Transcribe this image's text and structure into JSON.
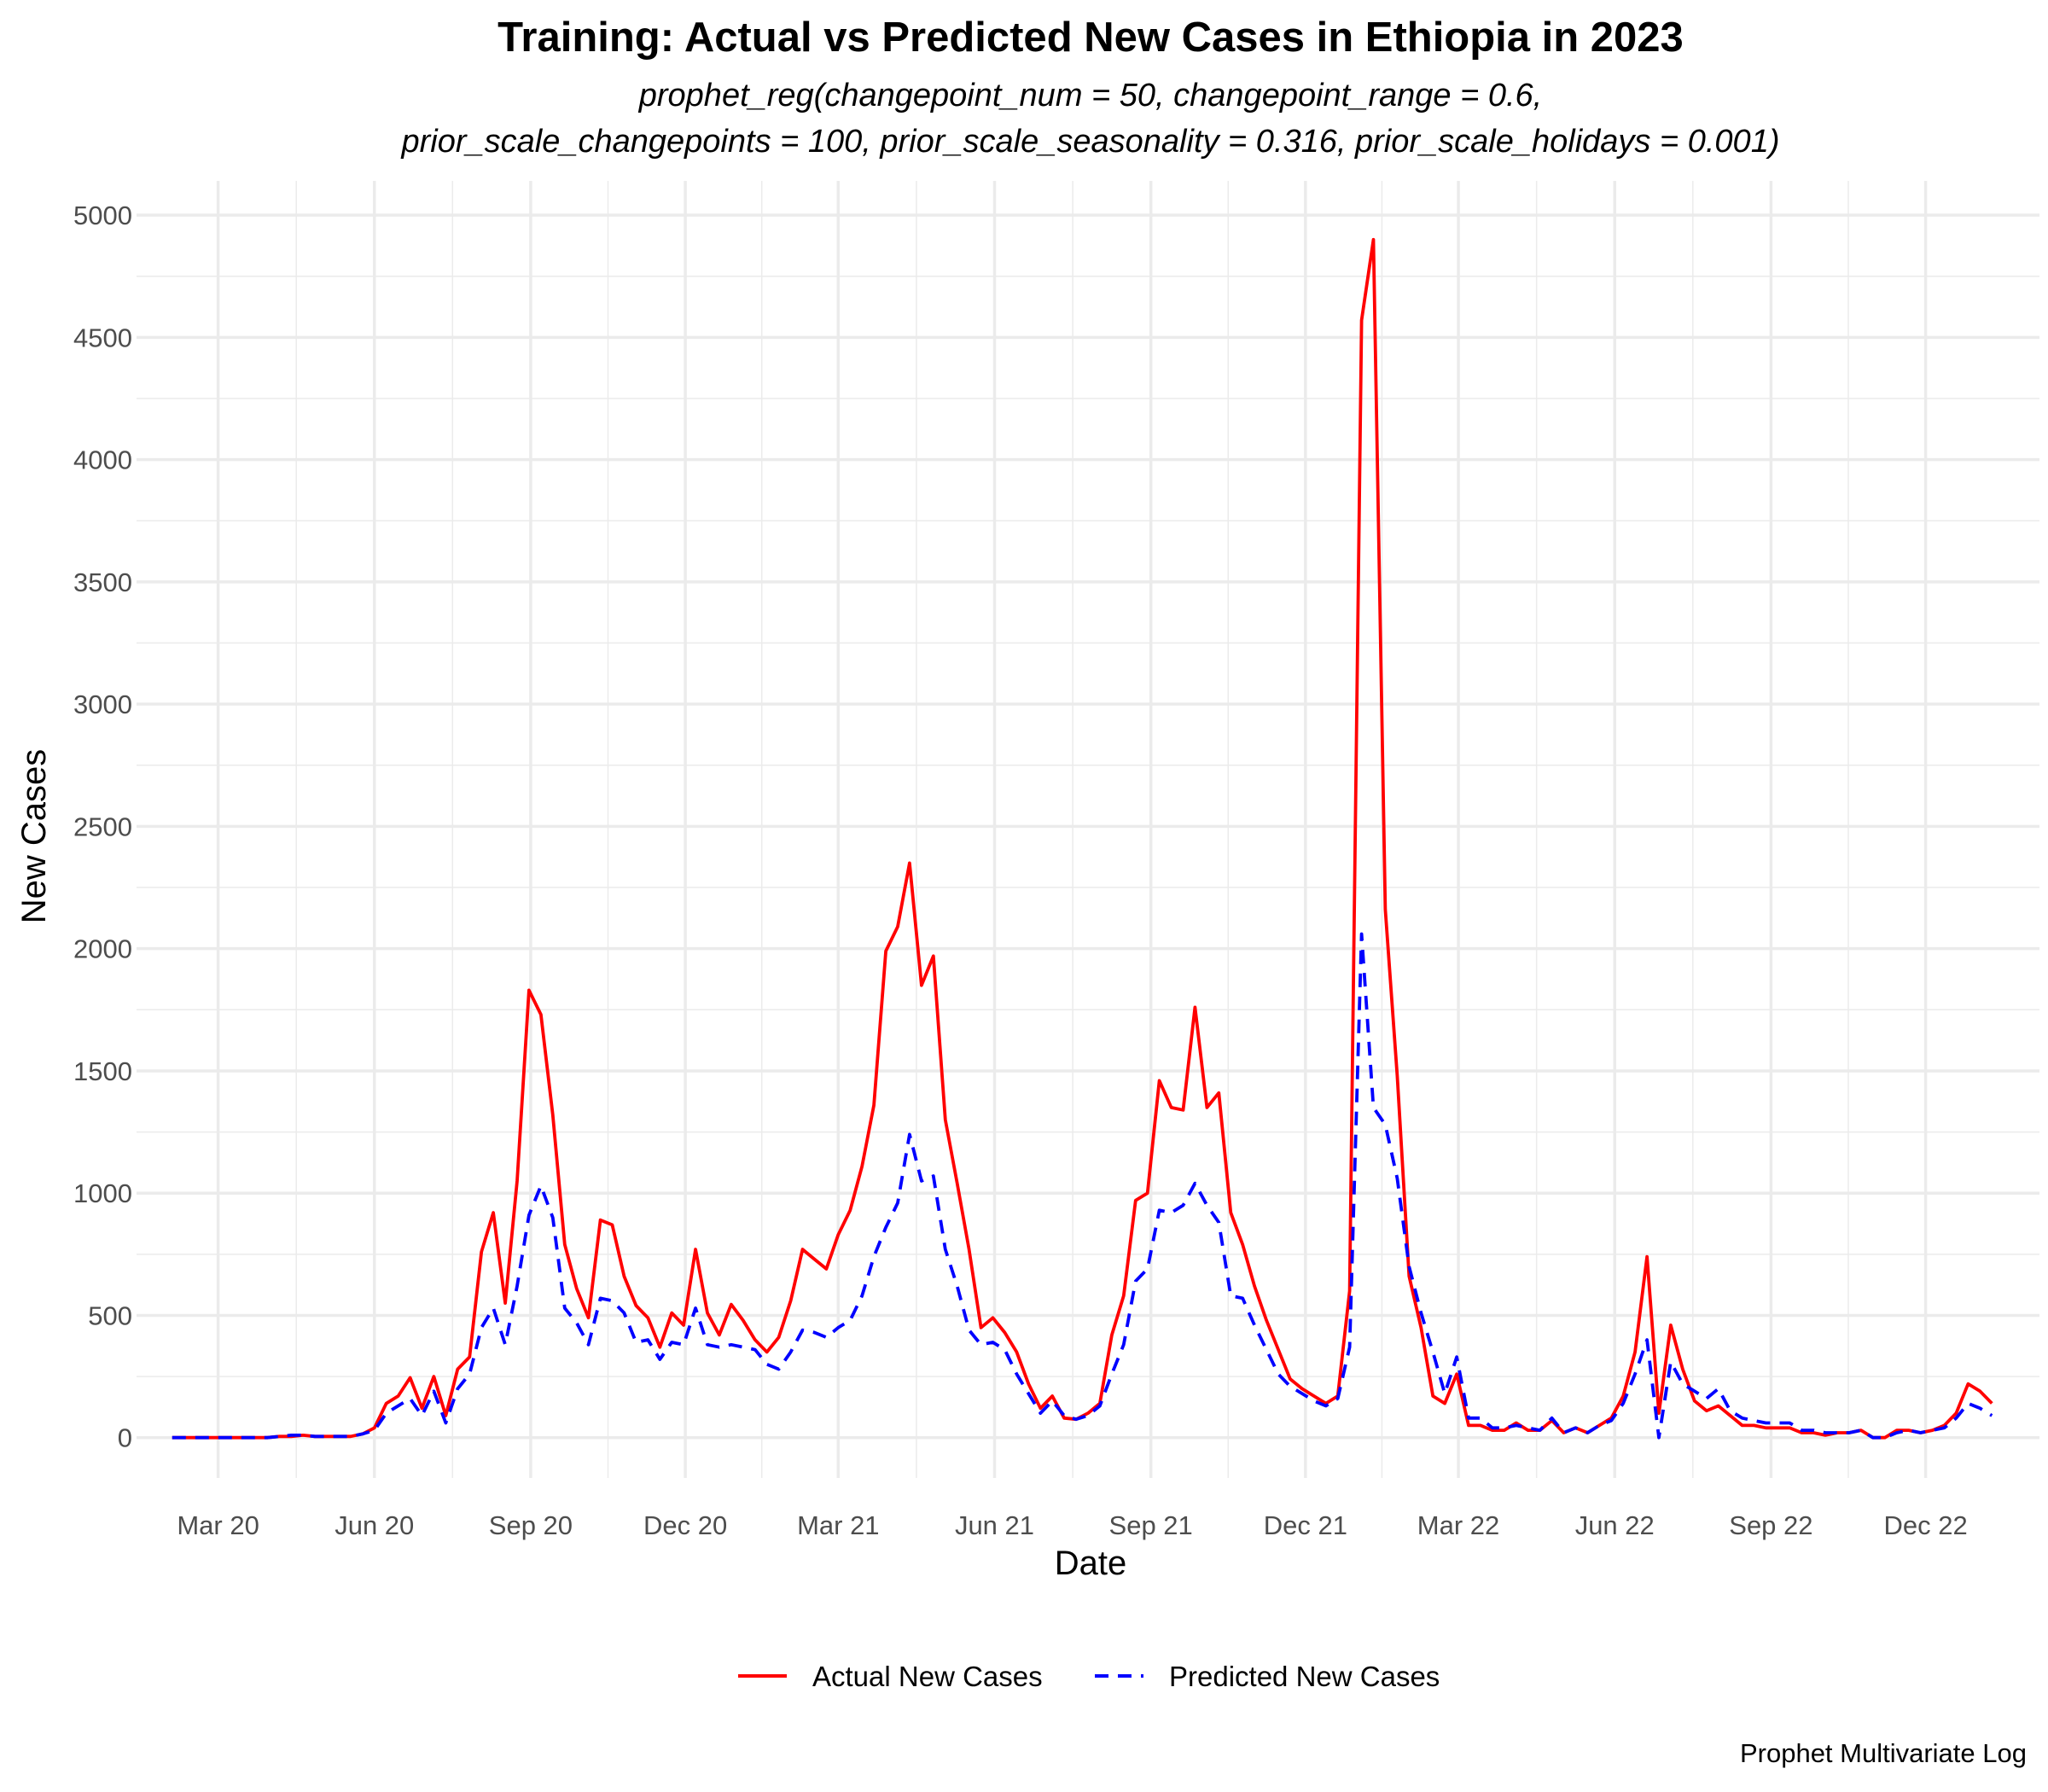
{
  "chart_data": {
    "type": "line",
    "title": "Training: Actual vs Predicted New Cases in Ethiopia in 2023",
    "subtitle_lines": [
      "prophet_reg(changepoint_num = 50, changepoint_range = 0.6,",
      "prior_scale_changepoints = 100, prior_scale_seasonality = 0.316, prior_scale_holidays = 0.001)"
    ],
    "xlabel": "Date",
    "ylabel": "New Cases",
    "caption": "Prophet Multivariate Log",
    "x_ticks": [
      {
        "date": "2020-03-01",
        "label": "Mar 20"
      },
      {
        "date": "2020-06-01",
        "label": "Jun 20"
      },
      {
        "date": "2020-09-01",
        "label": "Sep 20"
      },
      {
        "date": "2020-12-01",
        "label": "Dec 20"
      },
      {
        "date": "2021-03-01",
        "label": "Mar 21"
      },
      {
        "date": "2021-06-01",
        "label": "Jun 21"
      },
      {
        "date": "2021-09-01",
        "label": "Sep 21"
      },
      {
        "date": "2021-12-01",
        "label": "Dec 21"
      },
      {
        "date": "2022-03-01",
        "label": "Mar 22"
      },
      {
        "date": "2022-06-01",
        "label": "Jun 22"
      },
      {
        "date": "2022-09-01",
        "label": "Sep 22"
      },
      {
        "date": "2022-12-01",
        "label": "Dec 22"
      }
    ],
    "y_ticks": [
      0,
      500,
      1000,
      1500,
      2000,
      2500,
      3000,
      3500,
      4000,
      4500,
      5000
    ],
    "xlim": [
      "2020-01-13",
      "2023-02-06"
    ],
    "ylim": [
      -165,
      5140
    ],
    "grid": true,
    "legend_position": "bottom",
    "x": [
      "2020-02-03",
      "2020-02-10",
      "2020-02-17",
      "2020-02-24",
      "2020-03-02",
      "2020-03-09",
      "2020-03-16",
      "2020-03-23",
      "2020-03-30",
      "2020-04-06",
      "2020-04-13",
      "2020-04-20",
      "2020-04-27",
      "2020-05-04",
      "2020-05-11",
      "2020-05-18",
      "2020-05-25",
      "2020-06-01",
      "2020-06-08",
      "2020-06-15",
      "2020-06-22",
      "2020-06-29",
      "2020-07-06",
      "2020-07-13",
      "2020-07-20",
      "2020-07-27",
      "2020-08-03",
      "2020-08-10",
      "2020-08-17",
      "2020-08-24",
      "2020-08-31",
      "2020-09-07",
      "2020-09-14",
      "2020-09-21",
      "2020-09-28",
      "2020-10-05",
      "2020-10-12",
      "2020-10-19",
      "2020-10-26",
      "2020-11-02",
      "2020-11-09",
      "2020-11-16",
      "2020-11-23",
      "2020-11-30",
      "2020-12-07",
      "2020-12-14",
      "2020-12-21",
      "2020-12-28",
      "2021-01-04",
      "2021-01-11",
      "2021-01-18",
      "2021-01-25",
      "2021-02-01",
      "2021-02-08",
      "2021-02-15",
      "2021-02-22",
      "2021-03-01",
      "2021-03-08",
      "2021-03-15",
      "2021-03-22",
      "2021-03-29",
      "2021-04-05",
      "2021-04-12",
      "2021-04-19",
      "2021-04-26",
      "2021-05-03",
      "2021-05-10",
      "2021-05-17",
      "2021-05-24",
      "2021-05-31",
      "2021-06-07",
      "2021-06-14",
      "2021-06-21",
      "2021-06-28",
      "2021-07-05",
      "2021-07-12",
      "2021-07-19",
      "2021-07-26",
      "2021-08-02",
      "2021-08-09",
      "2021-08-16",
      "2021-08-23",
      "2021-08-30",
      "2021-09-06",
      "2021-09-13",
      "2021-09-20",
      "2021-09-27",
      "2021-10-04",
      "2021-10-11",
      "2021-10-18",
      "2021-10-25",
      "2021-11-01",
      "2021-11-08",
      "2021-11-15",
      "2021-11-22",
      "2021-11-29",
      "2021-12-06",
      "2021-12-13",
      "2021-12-20",
      "2021-12-27",
      "2022-01-03",
      "2022-01-10",
      "2022-01-17",
      "2022-01-24",
      "2022-01-31",
      "2022-02-07",
      "2022-02-14",
      "2022-02-21",
      "2022-02-28",
      "2022-03-07",
      "2022-03-14",
      "2022-03-21",
      "2022-03-28",
      "2022-04-04",
      "2022-04-11",
      "2022-04-18",
      "2022-04-25",
      "2022-05-02",
      "2022-05-09",
      "2022-05-16",
      "2022-05-23",
      "2022-05-30",
      "2022-06-06",
      "2022-06-13",
      "2022-06-20",
      "2022-06-27",
      "2022-07-04",
      "2022-07-11",
      "2022-07-18",
      "2022-07-25",
      "2022-08-01",
      "2022-08-08",
      "2022-08-15",
      "2022-08-22",
      "2022-08-29",
      "2022-09-05",
      "2022-09-12",
      "2022-09-19",
      "2022-09-26",
      "2022-10-03",
      "2022-10-10",
      "2022-10-17",
      "2022-10-24",
      "2022-10-31",
      "2022-11-07",
      "2022-11-14",
      "2022-11-21",
      "2022-11-28",
      "2022-12-05",
      "2022-12-12",
      "2022-12-19",
      "2022-12-26",
      "2023-01-02",
      "2023-01-09"
    ],
    "series": [
      {
        "name": "Actual New Cases",
        "color": "#ff0000",
        "dash": "solid",
        "values": [
          0,
          0,
          0,
          0,
          0,
          0,
          0,
          0,
          0,
          5,
          5,
          10,
          5,
          5,
          5,
          5,
          15,
          40,
          140,
          170,
          245,
          120,
          250,
          90,
          280,
          330,
          760,
          920,
          550,
          1050,
          1830,
          1730,
          1320,
          790,
          610,
          490,
          890,
          870,
          660,
          540,
          490,
          370,
          510,
          460,
          770,
          510,
          420,
          545,
          480,
          400,
          350,
          410,
          560,
          770,
          730,
          690,
          830,
          930,
          1110,
          1360,
          1990,
          2090,
          2350,
          1850,
          1970,
          1300,
          1040,
          770,
          450,
          490,
          430,
          350,
          220,
          120,
          170,
          80,
          75,
          100,
          140,
          420,
          580,
          970,
          1000,
          1460,
          1350,
          1340,
          1760,
          1350,
          1410,
          920,
          790,
          620,
          480,
          360,
          240,
          200,
          170,
          140,
          170,
          600,
          4570,
          4900,
          2160,
          1480,
          660,
          450,
          170,
          140,
          260,
          50,
          50,
          30,
          30,
          60,
          30,
          30,
          70,
          20,
          40,
          20,
          50,
          80,
          170,
          350,
          740,
          100,
          460,
          280,
          150,
          110,
          130,
          90,
          50,
          50,
          40,
          40,
          40,
          20,
          20,
          10,
          20,
          20,
          30,
          0,
          0,
          30,
          30,
          20,
          30,
          50,
          100,
          220,
          190,
          140
        ]
      },
      {
        "name": "Predicted New Cases",
        "color": "#0000ff",
        "dash": "dashed",
        "values": [
          0,
          0,
          0,
          0,
          0,
          0,
          0,
          0,
          0,
          5,
          10,
          10,
          5,
          5,
          5,
          5,
          15,
          30,
          100,
          130,
          160,
          90,
          190,
          60,
          200,
          260,
          450,
          530,
          380,
          620,
          910,
          1030,
          900,
          530,
          470,
          380,
          570,
          560,
          510,
          390,
          400,
          320,
          390,
          380,
          530,
          380,
          370,
          380,
          370,
          360,
          300,
          280,
          350,
          440,
          430,
          410,
          450,
          480,
          580,
          740,
          860,
          960,
          1240,
          1050,
          1070,
          770,
          620,
          440,
          380,
          390,
          360,
          260,
          180,
          100,
          150,
          90,
          75,
          90,
          130,
          260,
          380,
          640,
          690,
          930,
          920,
          950,
          1040,
          950,
          880,
          580,
          570,
          460,
          360,
          260,
          210,
          180,
          150,
          130,
          160,
          370,
          2060,
          1350,
          1280,
          1060,
          700,
          510,
          350,
          180,
          330,
          80,
          80,
          40,
          40,
          50,
          40,
          30,
          80,
          20,
          40,
          20,
          50,
          70,
          140,
          260,
          400,
          0,
          310,
          220,
          190,
          160,
          200,
          110,
          80,
          70,
          60,
          60,
          60,
          30,
          30,
          20,
          20,
          20,
          30,
          0,
          0,
          20,
          30,
          20,
          30,
          40,
          80,
          140,
          120,
          90
        ]
      }
    ]
  }
}
